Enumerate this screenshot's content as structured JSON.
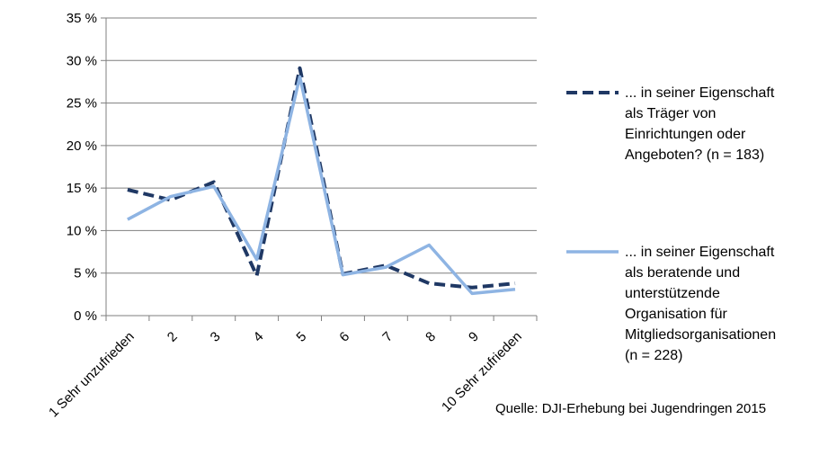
{
  "chart_data": {
    "type": "line",
    "categories": [
      "1 Sehr unzufrieden",
      "2",
      "3",
      "4",
      "5",
      "6",
      "7",
      "8",
      "9",
      "10 Sehr zufrieden"
    ],
    "y_ticks": [
      "0 %",
      "5 %",
      "10 %",
      "15 %",
      "20 %",
      "25 %",
      "30 %",
      "35 %"
    ],
    "ylim": [
      0,
      35
    ],
    "grid": true,
    "series": [
      {
        "name": "... in seiner Eigenschaft als Träger von Einrichtungen oder Angeboten? (n = 183)",
        "legend_lines": [
          "... in seiner Eigenschaft",
          "als Träger von",
          "Einrichtungen oder",
          "Angeboten? (n = 183)"
        ],
        "values": [
          14.8,
          13.6,
          15.7,
          4.7,
          29.1,
          4.9,
          5.9,
          3.8,
          3.3,
          3.8
        ],
        "color": "#1f3864",
        "style": "dashed"
      },
      {
        "name": "... in seiner Eigenschaft als beratende und unterstützende Organisation für Mitgliedsorganisationen (n = 228)",
        "legend_lines": [
          "... in seiner Eigenschaft",
          "als beratende und",
          "unterstützende",
          "Organisation für",
          "Mitgliedsorganisationen",
          "(n = 228)"
        ],
        "values": [
          11.3,
          14.0,
          15.2,
          6.6,
          28.1,
          4.8,
          5.7,
          8.3,
          2.6,
          3.1
        ],
        "color": "#8eb4e3",
        "style": "solid"
      }
    ],
    "legend_position": "right",
    "source": "Quelle: DJI-Erhebung bei Jugendringen 2015"
  }
}
